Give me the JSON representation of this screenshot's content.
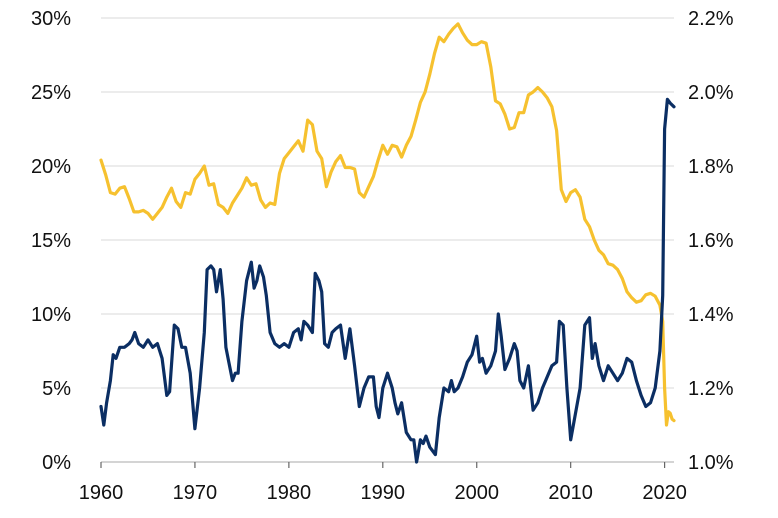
{
  "chart_data": {
    "type": "line",
    "title": "",
    "xlabel": "",
    "ylabel_left": "",
    "ylabel_right": "",
    "xlim": [
      1960,
      2021
    ],
    "ylim_left": [
      0,
      30
    ],
    "ylim_right": [
      1.0,
      2.2
    ],
    "grid": true,
    "legend": "none",
    "x_ticks": [
      {
        "value": 1960,
        "label": "1960"
      },
      {
        "value": 1970,
        "label": "1970"
      },
      {
        "value": 1980,
        "label": "1980"
      },
      {
        "value": 1990,
        "label": "1990"
      },
      {
        "value": 2000,
        "label": "2000"
      },
      {
        "value": 2010,
        "label": "2010"
      },
      {
        "value": 2020,
        "label": "2020"
      }
    ],
    "y_ticks_left": [
      {
        "value": 0,
        "label": "0%"
      },
      {
        "value": 5,
        "label": "5%"
      },
      {
        "value": 10,
        "label": "10%"
      },
      {
        "value": 15,
        "label": "15%"
      },
      {
        "value": 20,
        "label": "20%"
      },
      {
        "value": 25,
        "label": "25%"
      },
      {
        "value": 30,
        "label": "30%"
      }
    ],
    "y_ticks_right": [
      {
        "value": 1.0,
        "label": "1.0%"
      },
      {
        "value": 1.2,
        "label": "1.2%"
      },
      {
        "value": 1.4,
        "label": "1.4%"
      },
      {
        "value": 1.6,
        "label": "1.6%"
      },
      {
        "value": 1.8,
        "label": "1.8%"
      },
      {
        "value": 2.0,
        "label": "2.0%"
      },
      {
        "value": 2.2,
        "label": "2.2%"
      }
    ],
    "series": [
      {
        "axis": "left",
        "color": "#F6C12F",
        "points": [
          [
            1960.0,
            20.4
          ],
          [
            1960.5,
            19.4
          ],
          [
            1961.0,
            18.2
          ],
          [
            1961.5,
            18.1
          ],
          [
            1962.0,
            18.5
          ],
          [
            1962.5,
            18.6
          ],
          [
            1963.0,
            17.8
          ],
          [
            1963.5,
            16.9
          ],
          [
            1964.0,
            16.9
          ],
          [
            1964.5,
            17.0
          ],
          [
            1965.0,
            16.8
          ],
          [
            1965.5,
            16.4
          ],
          [
            1966.0,
            16.8
          ],
          [
            1966.5,
            17.2
          ],
          [
            1967.0,
            17.9
          ],
          [
            1967.5,
            18.5
          ],
          [
            1968.0,
            17.6
          ],
          [
            1968.5,
            17.2
          ],
          [
            1969.0,
            18.2
          ],
          [
            1969.5,
            18.1
          ],
          [
            1970.0,
            19.1
          ],
          [
            1970.5,
            19.5
          ],
          [
            1971.0,
            20.0
          ],
          [
            1971.5,
            18.7
          ],
          [
            1972.0,
            18.8
          ],
          [
            1972.5,
            17.4
          ],
          [
            1973.0,
            17.2
          ],
          [
            1973.5,
            16.8
          ],
          [
            1974.0,
            17.5
          ],
          [
            1974.5,
            18.0
          ],
          [
            1975.0,
            18.5
          ],
          [
            1975.5,
            19.2
          ],
          [
            1976.0,
            18.7
          ],
          [
            1976.5,
            18.8
          ],
          [
            1977.0,
            17.7
          ],
          [
            1977.5,
            17.2
          ],
          [
            1978.0,
            17.5
          ],
          [
            1978.5,
            17.4
          ],
          [
            1979.0,
            19.5
          ],
          [
            1979.5,
            20.5
          ],
          [
            1980.0,
            20.9
          ],
          [
            1980.5,
            21.3
          ],
          [
            1981.0,
            21.7
          ],
          [
            1981.5,
            21.0
          ],
          [
            1982.0,
            23.1
          ],
          [
            1982.5,
            22.8
          ],
          [
            1983.0,
            21.0
          ],
          [
            1983.5,
            20.5
          ],
          [
            1984.0,
            18.6
          ],
          [
            1984.5,
            19.6
          ],
          [
            1985.0,
            20.3
          ],
          [
            1985.5,
            20.7
          ],
          [
            1986.0,
            19.9
          ],
          [
            1986.5,
            19.9
          ],
          [
            1987.0,
            19.8
          ],
          [
            1987.5,
            18.2
          ],
          [
            1988.0,
            17.9
          ],
          [
            1988.5,
            18.6
          ],
          [
            1989.0,
            19.3
          ],
          [
            1989.5,
            20.4
          ],
          [
            1990.0,
            21.4
          ],
          [
            1990.5,
            20.8
          ],
          [
            1991.0,
            21.4
          ],
          [
            1991.5,
            21.3
          ],
          [
            1992.0,
            20.6
          ],
          [
            1992.5,
            21.4
          ],
          [
            1993.0,
            22.0
          ],
          [
            1993.5,
            23.1
          ],
          [
            1994.0,
            24.3
          ],
          [
            1994.5,
            25.0
          ],
          [
            1995.0,
            26.2
          ],
          [
            1995.5,
            27.6
          ],
          [
            1996.0,
            28.7
          ],
          [
            1996.5,
            28.4
          ],
          [
            1997.0,
            28.9
          ],
          [
            1997.5,
            29.3
          ],
          [
            1998.0,
            29.6
          ],
          [
            1998.5,
            29.0
          ],
          [
            1999.0,
            28.5
          ],
          [
            1999.5,
            28.2
          ],
          [
            2000.0,
            28.2
          ],
          [
            2000.5,
            28.4
          ],
          [
            2001.0,
            28.3
          ],
          [
            2001.5,
            26.7
          ],
          [
            2002.0,
            24.4
          ],
          [
            2002.5,
            24.2
          ],
          [
            2003.0,
            23.5
          ],
          [
            2003.5,
            22.5
          ],
          [
            2004.0,
            22.6
          ],
          [
            2004.5,
            23.6
          ],
          [
            2005.0,
            23.6
          ],
          [
            2005.5,
            24.8
          ],
          [
            2006.0,
            25.0
          ],
          [
            2006.5,
            25.3
          ],
          [
            2007.0,
            25.0
          ],
          [
            2007.5,
            24.6
          ],
          [
            2008.0,
            24.0
          ],
          [
            2008.5,
            22.4
          ],
          [
            2009.0,
            18.4
          ],
          [
            2009.5,
            17.6
          ],
          [
            2010.0,
            18.2
          ],
          [
            2010.5,
            18.4
          ],
          [
            2011.0,
            17.9
          ],
          [
            2011.5,
            16.4
          ],
          [
            2012.0,
            15.9
          ],
          [
            2012.5,
            15.0
          ],
          [
            2013.0,
            14.3
          ],
          [
            2013.5,
            14.0
          ],
          [
            2014.0,
            13.4
          ],
          [
            2014.5,
            13.3
          ],
          [
            2015.0,
            13.0
          ],
          [
            2015.5,
            12.4
          ],
          [
            2016.0,
            11.5
          ],
          [
            2016.5,
            11.1
          ],
          [
            2017.0,
            10.8
          ],
          [
            2017.5,
            10.9
          ],
          [
            2018.0,
            11.3
          ],
          [
            2018.5,
            11.4
          ],
          [
            2019.0,
            11.2
          ],
          [
            2019.5,
            10.6
          ],
          [
            2019.8,
            9.5
          ],
          [
            2020.0,
            5.0
          ],
          [
            2020.2,
            2.5
          ],
          [
            2020.4,
            3.4
          ],
          [
            2020.6,
            3.3
          ],
          [
            2020.8,
            2.9
          ],
          [
            2021.0,
            2.8
          ]
        ]
      },
      {
        "axis": "right",
        "color": "#0B2E63",
        "points": [
          [
            1960.0,
            1.15
          ],
          [
            1960.3,
            1.1
          ],
          [
            1960.6,
            1.16
          ],
          [
            1961.0,
            1.22
          ],
          [
            1961.3,
            1.29
          ],
          [
            1961.6,
            1.28
          ],
          [
            1962.0,
            1.31
          ],
          [
            1962.5,
            1.31
          ],
          [
            1963.0,
            1.32
          ],
          [
            1963.3,
            1.33
          ],
          [
            1963.6,
            1.35
          ],
          [
            1964.0,
            1.32
          ],
          [
            1964.5,
            1.31
          ],
          [
            1965.0,
            1.33
          ],
          [
            1965.5,
            1.31
          ],
          [
            1966.0,
            1.32
          ],
          [
            1966.5,
            1.28
          ],
          [
            1967.0,
            1.18
          ],
          [
            1967.3,
            1.19
          ],
          [
            1967.8,
            1.37
          ],
          [
            1968.2,
            1.36
          ],
          [
            1968.6,
            1.31
          ],
          [
            1969.0,
            1.31
          ],
          [
            1969.5,
            1.24
          ],
          [
            1970.0,
            1.09
          ],
          [
            1970.5,
            1.2
          ],
          [
            1971.0,
            1.35
          ],
          [
            1971.3,
            1.52
          ],
          [
            1971.7,
            1.53
          ],
          [
            1972.0,
            1.52
          ],
          [
            1972.3,
            1.46
          ],
          [
            1972.7,
            1.52
          ],
          [
            1973.0,
            1.44
          ],
          [
            1973.3,
            1.31
          ],
          [
            1973.6,
            1.27
          ],
          [
            1974.0,
            1.22
          ],
          [
            1974.3,
            1.24
          ],
          [
            1974.6,
            1.24
          ],
          [
            1975.0,
            1.38
          ],
          [
            1975.5,
            1.49
          ],
          [
            1976.0,
            1.54
          ],
          [
            1976.3,
            1.47
          ],
          [
            1976.6,
            1.49
          ],
          [
            1976.9,
            1.53
          ],
          [
            1977.3,
            1.5
          ],
          [
            1977.6,
            1.45
          ],
          [
            1978.0,
            1.35
          ],
          [
            1978.5,
            1.32
          ],
          [
            1979.0,
            1.31
          ],
          [
            1979.5,
            1.32
          ],
          [
            1980.0,
            1.31
          ],
          [
            1980.5,
            1.35
          ],
          [
            1981.0,
            1.36
          ],
          [
            1981.3,
            1.33
          ],
          [
            1981.6,
            1.38
          ],
          [
            1982.0,
            1.37
          ],
          [
            1982.5,
            1.35
          ],
          [
            1982.8,
            1.51
          ],
          [
            1983.2,
            1.49
          ],
          [
            1983.5,
            1.46
          ],
          [
            1983.8,
            1.32
          ],
          [
            1984.2,
            1.31
          ],
          [
            1984.6,
            1.35
          ],
          [
            1985.0,
            1.36
          ],
          [
            1985.5,
            1.37
          ],
          [
            1986.0,
            1.28
          ],
          [
            1986.5,
            1.36
          ],
          [
            1987.0,
            1.26
          ],
          [
            1987.5,
            1.15
          ],
          [
            1988.0,
            1.2
          ],
          [
            1988.5,
            1.23
          ],
          [
            1989.0,
            1.23
          ],
          [
            1989.3,
            1.15
          ],
          [
            1989.6,
            1.12
          ],
          [
            1990.0,
            1.2
          ],
          [
            1990.5,
            1.24
          ],
          [
            1991.0,
            1.2
          ],
          [
            1991.3,
            1.16
          ],
          [
            1991.6,
            1.13
          ],
          [
            1992.0,
            1.16
          ],
          [
            1992.5,
            1.08
          ],
          [
            1993.0,
            1.06
          ],
          [
            1993.3,
            1.06
          ],
          [
            1993.6,
            1.0
          ],
          [
            1994.0,
            1.06
          ],
          [
            1994.3,
            1.05
          ],
          [
            1994.6,
            1.07
          ],
          [
            1995.0,
            1.04
          ],
          [
            1995.3,
            1.03
          ],
          [
            1995.6,
            1.02
          ],
          [
            1996.0,
            1.12
          ],
          [
            1996.5,
            1.2
          ],
          [
            1997.0,
            1.19
          ],
          [
            1997.3,
            1.22
          ],
          [
            1997.6,
            1.19
          ],
          [
            1998.0,
            1.2
          ],
          [
            1998.5,
            1.23
          ],
          [
            1999.0,
            1.27
          ],
          [
            1999.5,
            1.29
          ],
          [
            2000.0,
            1.34
          ],
          [
            2000.3,
            1.27
          ],
          [
            2000.6,
            1.28
          ],
          [
            2001.0,
            1.24
          ],
          [
            2001.5,
            1.26
          ],
          [
            2002.0,
            1.3
          ],
          [
            2002.3,
            1.4
          ],
          [
            2002.6,
            1.34
          ],
          [
            2003.0,
            1.25
          ],
          [
            2003.5,
            1.28
          ],
          [
            2004.0,
            1.32
          ],
          [
            2004.3,
            1.3
          ],
          [
            2004.6,
            1.22
          ],
          [
            2005.0,
            1.2
          ],
          [
            2005.5,
            1.26
          ],
          [
            2006.0,
            1.14
          ],
          [
            2006.5,
            1.16
          ],
          [
            2007.0,
            1.2
          ],
          [
            2007.5,
            1.23
          ],
          [
            2008.0,
            1.26
          ],
          [
            2008.5,
            1.27
          ],
          [
            2008.8,
            1.38
          ],
          [
            2009.2,
            1.37
          ],
          [
            2009.6,
            1.2
          ],
          [
            2010.0,
            1.06
          ],
          [
            2010.5,
            1.13
          ],
          [
            2011.0,
            1.2
          ],
          [
            2011.5,
            1.37
          ],
          [
            2012.0,
            1.39
          ],
          [
            2012.3,
            1.28
          ],
          [
            2012.6,
            1.32
          ],
          [
            2013.0,
            1.26
          ],
          [
            2013.5,
            1.22
          ],
          [
            2014.0,
            1.26
          ],
          [
            2014.5,
            1.24
          ],
          [
            2015.0,
            1.22
          ],
          [
            2015.5,
            1.24
          ],
          [
            2016.0,
            1.28
          ],
          [
            2016.5,
            1.27
          ],
          [
            2017.0,
            1.22
          ],
          [
            2017.5,
            1.18
          ],
          [
            2018.0,
            1.15
          ],
          [
            2018.5,
            1.16
          ],
          [
            2019.0,
            1.2
          ],
          [
            2019.5,
            1.3
          ],
          [
            2019.8,
            1.45
          ],
          [
            2020.0,
            1.9
          ],
          [
            2020.3,
            1.98
          ],
          [
            2020.6,
            1.97
          ],
          [
            2021.0,
            1.96
          ]
        ]
      }
    ]
  }
}
